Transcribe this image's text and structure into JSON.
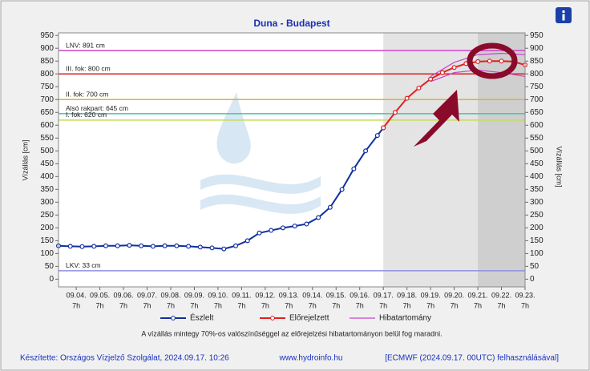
{
  "chart_data": {
    "type": "line",
    "title": "Duna - Budapest",
    "y_label": "Vízállás [cm]",
    "y2_label": "Vízállás [cm]",
    "xlim": [
      3.25,
      23
    ],
    "xticks": [
      {
        "value": 4,
        "label": "09.04."
      },
      {
        "value": 5,
        "label": "09.05."
      },
      {
        "value": 6,
        "label": "09.06."
      },
      {
        "value": 7,
        "label": "09.07."
      },
      {
        "value": 8,
        "label": "09.08."
      },
      {
        "value": 9,
        "label": "09.09."
      },
      {
        "value": 10,
        "label": "09.10."
      },
      {
        "value": 11,
        "label": "09.11."
      },
      {
        "value": 12,
        "label": "09.12."
      },
      {
        "value": 13,
        "label": "09.13."
      },
      {
        "value": 14,
        "label": "09.14."
      },
      {
        "value": 15,
        "label": "09.15."
      },
      {
        "value": 16,
        "label": "09.16."
      },
      {
        "value": 17,
        "label": "09.17."
      },
      {
        "value": 18,
        "label": "09.18."
      },
      {
        "value": 19,
        "label": "09.19."
      },
      {
        "value": 20,
        "label": "09.20."
      },
      {
        "value": 21,
        "label": "09.21."
      },
      {
        "value": 22,
        "label": "09.22."
      },
      {
        "value": 23,
        "label": "09.23."
      }
    ],
    "xtick_hour": "7h",
    "ylim": [
      -30,
      960
    ],
    "yticks": [
      0,
      50,
      100,
      150,
      200,
      250,
      300,
      350,
      400,
      450,
      500,
      550,
      600,
      650,
      700,
      750,
      800,
      850,
      900,
      950
    ],
    "shaded_regions": [
      {
        "x": [
          17,
          21
        ],
        "color": "#e4e4e4"
      },
      {
        "x": [
          21,
          23
        ],
        "color": "#cfcfcf"
      }
    ],
    "reference_lines": [
      {
        "label": "LNV: 891 cm",
        "value": 891,
        "color": "#cc44cc"
      },
      {
        "label": "III. fok: 800 cm",
        "value": 800,
        "color": "#d92020"
      },
      {
        "label": "II. fok: 700 cm",
        "value": 700,
        "color": "#e8b020"
      },
      {
        "label": "Alsó rakpart: 645 cm",
        "value": 645,
        "color": "#50c0a0"
      },
      {
        "label": "I. fok: 620 cm",
        "value": 620,
        "color": "#c8dc50"
      },
      {
        "label": "LKV: 33 cm",
        "value": 33,
        "color": "#9090e0"
      }
    ],
    "series": [
      {
        "name": "Észlelt",
        "color": "#1030a0",
        "x": [
          3.25,
          3.75,
          4.25,
          4.75,
          5.25,
          5.75,
          6.25,
          6.75,
          7.25,
          7.75,
          8.25,
          8.75,
          9.25,
          9.75,
          10.25,
          10.75,
          11.25,
          11.75,
          12.25,
          12.75,
          13.25,
          13.75,
          14.25,
          14.75,
          15.25,
          15.75,
          16.25,
          16.75,
          17
        ],
        "values": [
          130,
          128,
          127,
          128,
          130,
          130,
          132,
          130,
          128,
          130,
          130,
          128,
          125,
          122,
          118,
          130,
          150,
          180,
          190,
          200,
          207,
          215,
          240,
          280,
          350,
          430,
          500,
          560,
          590
        ]
      },
      {
        "name": "Előrejelzett",
        "color": "#e02020",
        "x": [
          17,
          17.5,
          18,
          18.5,
          19,
          19.5,
          20,
          20.5,
          21,
          21.5,
          22,
          22.5,
          23
        ],
        "values": [
          590,
          650,
          705,
          745,
          780,
          805,
          825,
          840,
          848,
          850,
          850,
          848,
          835
        ]
      }
    ],
    "error_band": {
      "name": "Hibatartomány",
      "color": "#cc44cc",
      "x": [
        19,
        20,
        21,
        22,
        23
      ],
      "upper": [
        790,
        845,
        875,
        880,
        875
      ],
      "lower": [
        770,
        805,
        815,
        805,
        790
      ]
    },
    "note": "A vízállás mintegy 70%-os valószínűséggel az előrejelzési hibatartományon belül fog maradni.",
    "footer_left": "Készítette: Országos Vízjelző Szolgálat, 2024.09.17. 10:26",
    "footer_center": "www.hydroinfo.hu",
    "footer_right": "[ECMWF (2024.09.17. 00UTC) felhasználásával]"
  }
}
